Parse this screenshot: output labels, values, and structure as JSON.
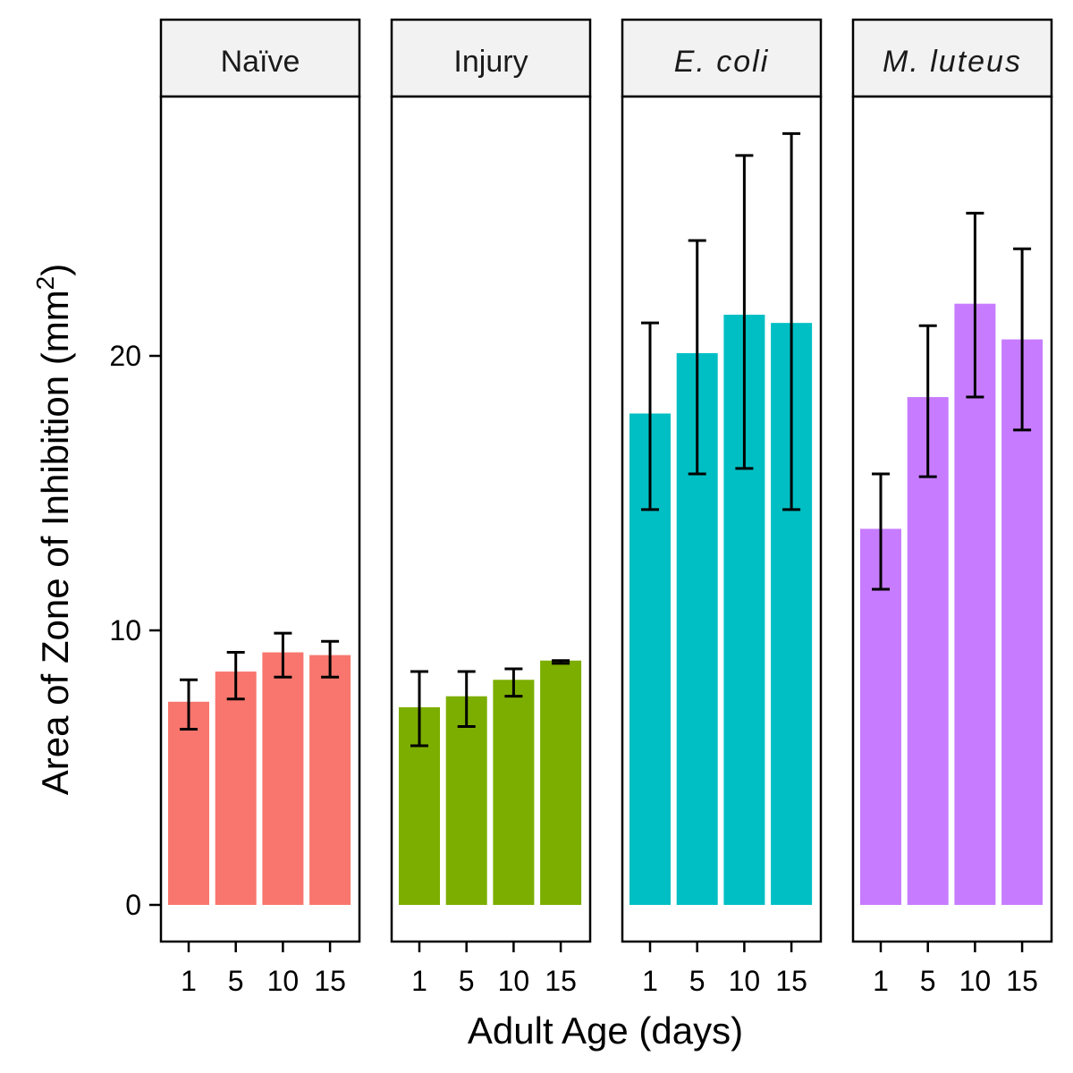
{
  "chart_data": {
    "type": "bar",
    "xlabel": "Adult Age (days)",
    "ylabel": "Area of Zone of Inhibition (mm²)",
    "ylabel_main": "Area of Zone of Inhibition",
    "ylabel_unit_base": "mm",
    "ylabel_unit_sup": "2",
    "ylim": [
      -1.2,
      29.8
    ],
    "yticks": [
      0,
      10,
      20
    ],
    "categories": [
      "1",
      "5",
      "10",
      "15"
    ],
    "panels": [
      {
        "label": "Naïve",
        "italic": false,
        "color": "#F8766D",
        "values": [
          7.4,
          8.5,
          9.2,
          9.1
        ],
        "error_low": [
          6.4,
          7.5,
          8.3,
          8.3
        ],
        "error_high": [
          8.2,
          9.2,
          9.9,
          9.6
        ]
      },
      {
        "label": "Injury",
        "italic": false,
        "color": "#7CAE00",
        "values": [
          7.2,
          7.6,
          8.2,
          8.9
        ],
        "error_low": [
          5.8,
          6.5,
          7.6,
          8.8
        ],
        "error_high": [
          8.5,
          8.5,
          8.6,
          8.9
        ]
      },
      {
        "label": "E. coli",
        "italic": true,
        "color": "#00BFC4",
        "values": [
          17.9,
          20.1,
          21.5,
          21.2
        ],
        "error_low": [
          14.4,
          15.7,
          15.9,
          14.4
        ],
        "error_high": [
          21.2,
          24.2,
          27.3,
          28.1
        ]
      },
      {
        "label": "M. luteus",
        "italic": true,
        "color": "#C77CFF",
        "values": [
          13.7,
          18.5,
          21.9,
          20.6
        ],
        "error_low": [
          11.5,
          15.6,
          18.5,
          17.3
        ],
        "error_high": [
          15.7,
          21.1,
          25.2,
          23.9
        ]
      }
    ]
  }
}
